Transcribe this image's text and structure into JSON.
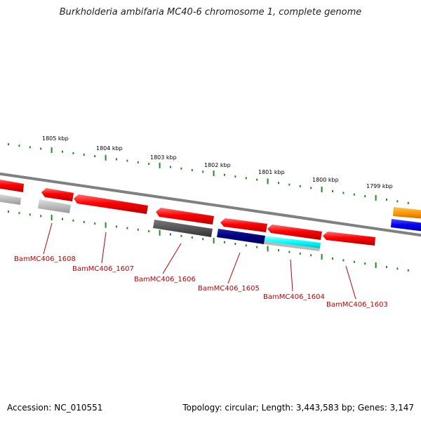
{
  "title": "Burkholderia ambifaria MC40-6 chromosome 1, complete genome",
  "accession_label": "Accession: NC_010551",
  "summary_label": "Topology: circular; Length: 3,443,583 bp; Genes: 3,147",
  "scale_labels": [
    "1805 kbp",
    "1804 kbp",
    "1803 kbp",
    "1802 kbp",
    "1801 kbp",
    "1800 kbp",
    "1799 kbp"
  ],
  "gene_labels": [
    "BamMC406_1608",
    "BamMC406_1607",
    "BamMC406_1606",
    "BamMC406_1605",
    "BamMC406_1604",
    "BamMC406_1603"
  ],
  "colors": {
    "gene": "#ff0000",
    "backbone": "#808080",
    "tick": "#228b22",
    "label": "#c00000",
    "track_dark": "#555555",
    "track_light": "#b8b8b8",
    "navy": "#000080",
    "cyan": "#00ffff",
    "orange": "#ff9900",
    "blue": "#0000ee"
  }
}
